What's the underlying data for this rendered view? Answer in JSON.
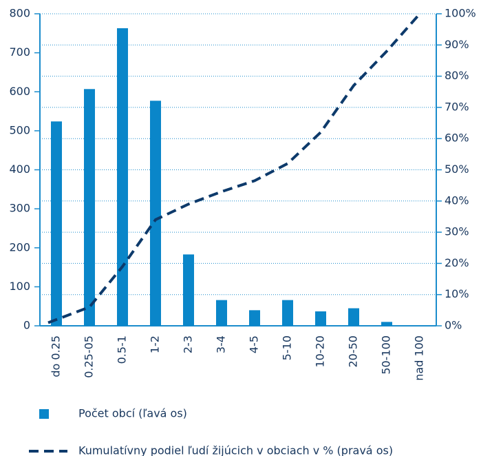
{
  "chart_data": {
    "type": "bar",
    "categories": [
      "do 0.25",
      "0.25-05",
      "0.5-1",
      "1-2",
      "2-3",
      "3-4",
      "4-5",
      "5-10",
      "10-20",
      "20-50",
      "50-100",
      "nad 100"
    ],
    "series": [
      {
        "name": "Počet obcí (ľavá os)",
        "type": "bar",
        "color": "#0a86c9",
        "values": [
          524,
          607,
          763,
          577,
          183,
          66,
          40,
          66,
          37,
          45,
          10,
          0
        ]
      },
      {
        "name": "Kumulatívny podiel ľudí žijúcich v obciach v % (pravá os)",
        "type": "line",
        "axis": "y2",
        "color": "#0d3a6b",
        "values": [
          1,
          6,
          19,
          34,
          39,
          43,
          46.5,
          52,
          62,
          77,
          88,
          100
        ]
      }
    ],
    "ylim": [
      0,
      800
    ],
    "yticks": [
      0,
      100,
      200,
      300,
      400,
      500,
      600,
      700,
      800
    ],
    "y2lim": [
      0,
      100
    ],
    "y2ticks": [
      {
        "value": 0,
        "label": "0%"
      },
      {
        "value": 10,
        "label": "10%"
      },
      {
        "value": 20,
        "label": "20%"
      },
      {
        "value": 30,
        "label": "30%"
      },
      {
        "value": 40,
        "label": "40%"
      },
      {
        "value": 50,
        "label": "50%"
      },
      {
        "value": 60,
        "label": "60%"
      },
      {
        "value": 70,
        "label": "70%"
      },
      {
        "value": 80,
        "label": "80%"
      },
      {
        "value": 90,
        "label": "90%"
      },
      {
        "value": 100,
        "label": "100%"
      }
    ],
    "grid": true
  }
}
